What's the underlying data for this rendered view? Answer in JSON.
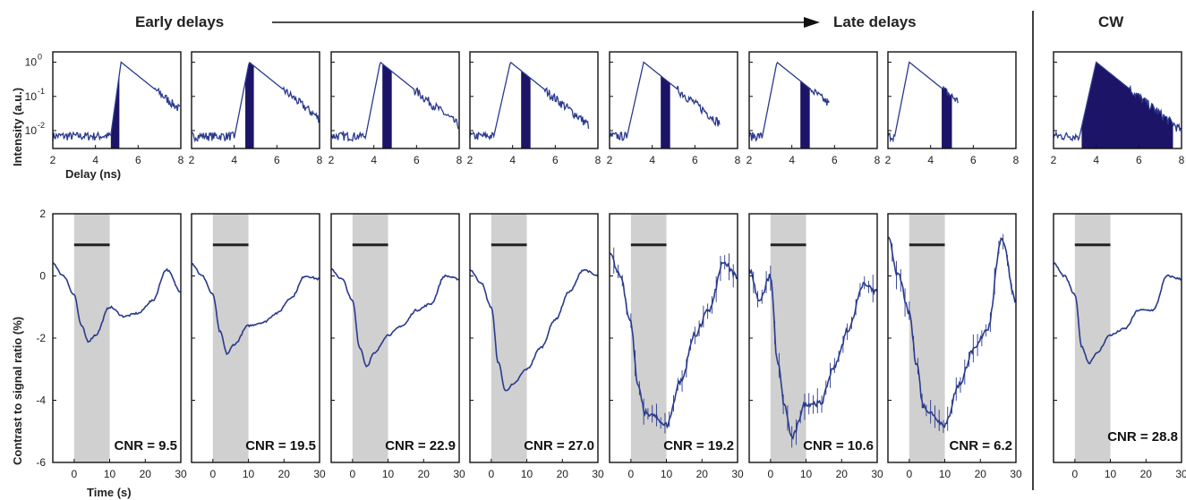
{
  "header": {
    "early": "Early delays",
    "late": "Late delays",
    "cw": "CW"
  },
  "chart_data": {
    "type": "line",
    "accent_color": "#2a3a8c",
    "fill_color": "#1c1466",
    "stim_band_color": "#d0d0d0",
    "top_row": {
      "ylabel": "Intensity  (a.u.)",
      "xlabel": "Delay (ns)",
      "xlim": [
        2,
        8
      ],
      "xticks": [
        "2",
        "4",
        "6",
        "8"
      ],
      "yscale": "log",
      "ylim": [
        0.003,
        2
      ],
      "yticks": [
        {
          "base": "10",
          "exp": "0",
          "value": 1
        },
        {
          "base": "10",
          "exp": "-1",
          "value": 0.1
        },
        {
          "base": "10",
          "exp": "-2",
          "value": 0.01
        }
      ],
      "panels": [
        {
          "peak": 5.2,
          "onset": 4.7,
          "tmax": 8.0,
          "gate": [
            4.7,
            5.15
          ],
          "ystart": 0.005,
          "xticks": [
            "2",
            "4",
            "6",
            "8"
          ]
        },
        {
          "peak": 4.7,
          "onset": 4.0,
          "tmax": 8.0,
          "gate": [
            4.5,
            4.95
          ],
          "ystart": 0.005,
          "xticks": [
            "2",
            "4",
            "6",
            "8"
          ]
        },
        {
          "peak": 4.3,
          "onset": 3.6,
          "tmax": 8.0,
          "gate": [
            4.4,
            4.85
          ],
          "ystart": 0.005,
          "xticks": [
            "2",
            "4",
            "6",
            "8"
          ]
        },
        {
          "peak": 3.9,
          "onset": 3.1,
          "tmax": 7.6,
          "gate": [
            4.4,
            4.85
          ],
          "ystart": 0.005,
          "xticks": [
            "2",
            "4",
            "6",
            "8"
          ]
        },
        {
          "peak": 3.6,
          "onset": 2.8,
          "tmax": 7.2,
          "gate": [
            4.4,
            4.85
          ],
          "ystart": 0.005,
          "xticks": [
            "2",
            "4",
            "6",
            "8"
          ]
        },
        {
          "peak": 3.3,
          "onset": 2.6,
          "tmax": 5.8,
          "gate": [
            4.4,
            4.85
          ],
          "ystart": 0.005,
          "xticks": [
            "2",
            "4",
            "6",
            "8"
          ]
        },
        {
          "peak": 3.0,
          "onset": 2.3,
          "tmax": 5.3,
          "gate": [
            4.5,
            5.0
          ],
          "ystart": 0.005,
          "xticks": [
            "2",
            "4",
            "6",
            "8"
          ]
        },
        {
          "peak": 4.0,
          "onset": 3.2,
          "tmax": 8.0,
          "gate": [
            3.3,
            7.6
          ],
          "ystart": 0.005,
          "xticks": [
            "2",
            "4",
            "6",
            "8"
          ],
          "cw": true
        }
      ]
    },
    "bottom_row": {
      "ylabel": "Contrast to signal ratio (%)",
      "xlabel": "Time (s)",
      "xlim": [
        -6,
        30
      ],
      "ylim": [
        -6,
        2
      ],
      "xticks": [
        "0",
        "10",
        "20",
        "30"
      ],
      "yticks": [
        "2",
        "0",
        "-2",
        "-4",
        "-6"
      ],
      "stimulus": [
        0,
        10
      ],
      "stim_bar_y": 1.0,
      "panels": [
        {
          "cnr": "CNR = 9.5",
          "depth": 2.2,
          "x": [
            -6,
            -3,
            0,
            2,
            4,
            6,
            10,
            14,
            18,
            22,
            26,
            30
          ],
          "y": [
            0.4,
            0.0,
            -0.6,
            -1.6,
            -2.1,
            -1.9,
            -1.0,
            -1.3,
            -1.2,
            -0.8,
            0.2,
            -0.5
          ],
          "errors": false
        },
        {
          "cnr": "CNR = 19.5",
          "depth": 2.5,
          "x": [
            -6,
            -3,
            0,
            2,
            4,
            6,
            10,
            14,
            18,
            22,
            26,
            30
          ],
          "y": [
            0.4,
            0.0,
            -0.6,
            -1.8,
            -2.5,
            -2.2,
            -1.6,
            -1.5,
            -1.2,
            -0.7,
            0.0,
            -0.1
          ],
          "errors": false
        },
        {
          "cnr": "CNR = 22.9",
          "depth": 2.9,
          "x": [
            -6,
            -3,
            0,
            2,
            4,
            6,
            10,
            14,
            18,
            22,
            26,
            30
          ],
          "y": [
            0.2,
            -0.1,
            -0.8,
            -2.3,
            -2.9,
            -2.5,
            -1.9,
            -1.6,
            -1.1,
            -0.9,
            0.0,
            -0.1
          ],
          "errors": false
        },
        {
          "cnr": "CNR = 27.0",
          "depth": 3.7,
          "x": [
            -6,
            -3,
            0,
            2,
            4,
            6,
            10,
            14,
            18,
            22,
            26,
            30
          ],
          "y": [
            0.2,
            -0.2,
            -1.0,
            -2.8,
            -3.7,
            -3.5,
            -3.0,
            -2.3,
            -1.4,
            -0.5,
            0.2,
            0.0
          ],
          "errors": false
        },
        {
          "cnr": "CNR = 19.2",
          "depth": 4.8,
          "x": [
            -6,
            -3,
            0,
            2,
            4,
            6,
            10,
            14,
            18,
            22,
            26,
            30
          ],
          "y": [
            0.7,
            0.0,
            -1.5,
            -3.6,
            -4.4,
            -4.5,
            -4.8,
            -3.4,
            -1.9,
            -1.1,
            0.4,
            0.0
          ],
          "errors": true
        },
        {
          "cnr": "CNR = 10.6",
          "depth": 5.3,
          "x": [
            -6,
            -3,
            0,
            2,
            4,
            6,
            10,
            14,
            18,
            22,
            26,
            30
          ],
          "y": [
            0.2,
            -0.8,
            0.0,
            -2.8,
            -4.2,
            -5.2,
            -4.1,
            -4.1,
            -2.9,
            -1.7,
            -0.3,
            -0.5
          ],
          "errors": true
        },
        {
          "cnr": "CNR = 6.2",
          "depth": 4.8,
          "x": [
            -6,
            -3,
            0,
            2,
            4,
            6,
            10,
            14,
            18,
            22,
            26,
            30
          ],
          "y": [
            1.2,
            0.0,
            -1.2,
            -2.8,
            -4.2,
            -4.4,
            -4.8,
            -3.5,
            -2.4,
            -1.7,
            1.2,
            -0.8
          ],
          "errors": true
        },
        {
          "cnr": "CNR = 28.8",
          "depth": 2.8,
          "x": [
            -6,
            -3,
            0,
            2,
            4,
            6,
            10,
            14,
            18,
            22,
            26,
            30
          ],
          "y": [
            0.4,
            0.0,
            -0.6,
            -2.3,
            -2.8,
            -2.5,
            -1.9,
            -1.7,
            -1.1,
            -1.1,
            0.0,
            -0.1
          ],
          "errors": false
        }
      ]
    }
  }
}
